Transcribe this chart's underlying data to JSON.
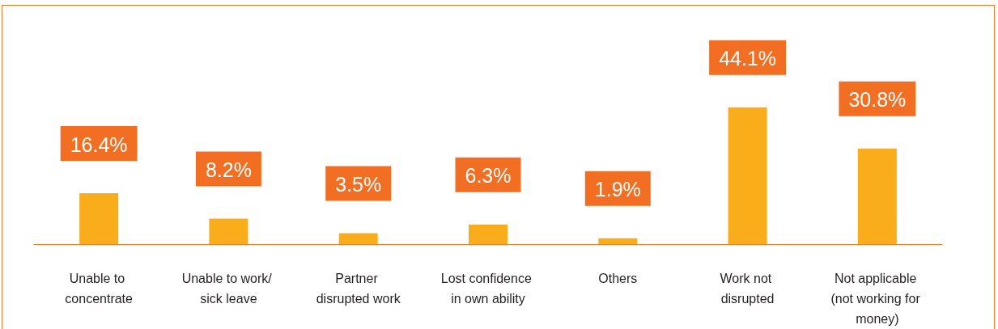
{
  "chart_data": {
    "type": "bar",
    "categories": [
      "Unable to concentrate",
      "Unable to work/ sick leave",
      "Partner disrupted work",
      "Lost confidence in own ability",
      "Others",
      "Work not disrupted",
      "Not applicable (not working for money)"
    ],
    "values": [
      16.4,
      8.2,
      3.5,
      6.3,
      1.9,
      44.1,
      30.8
    ],
    "value_labels": [
      "16.4%",
      "8.2%",
      "3.5%",
      "6.3%",
      "1.9%",
      "44.1%",
      "30.8%"
    ],
    "color": "#f9ad1b"
  }
}
